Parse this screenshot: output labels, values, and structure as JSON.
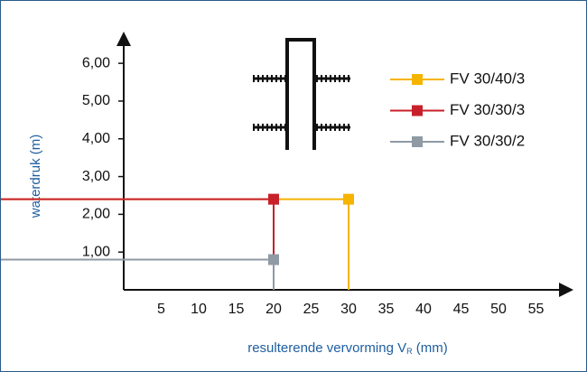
{
  "chart_data": {
    "type": "step",
    "xlabel": [
      "resulterende vervorming V",
      "R",
      " (mm)"
    ],
    "ylabel": "waterdruk (m)",
    "xlim": [
      0,
      60
    ],
    "ylim": [
      0,
      6.84
    ],
    "xticks": [
      5,
      10,
      15,
      20,
      25,
      30,
      35,
      40,
      45,
      50,
      55
    ],
    "yticks": [
      {
        "value": 1,
        "label": "1,00"
      },
      {
        "value": 2,
        "label": "2,00"
      },
      {
        "value": 3,
        "label": "3,00"
      },
      {
        "value": 4,
        "label": "4,00"
      },
      {
        "value": 5,
        "label": "5,00"
      },
      {
        "value": 6,
        "label": "6,00"
      }
    ],
    "series": [
      {
        "name": "FV 30/40/3",
        "color": "#f5b400",
        "x": [
          30
        ],
        "values": [
          2.4
        ]
      },
      {
        "name": "FV 30/30/3",
        "color": "#c8202a",
        "x": [
          20
        ],
        "values": [
          2.4
        ]
      },
      {
        "name": "FV 30/30/2",
        "color": "#8f9aa5",
        "x": [
          20
        ],
        "values": [
          0.8
        ]
      }
    ]
  }
}
